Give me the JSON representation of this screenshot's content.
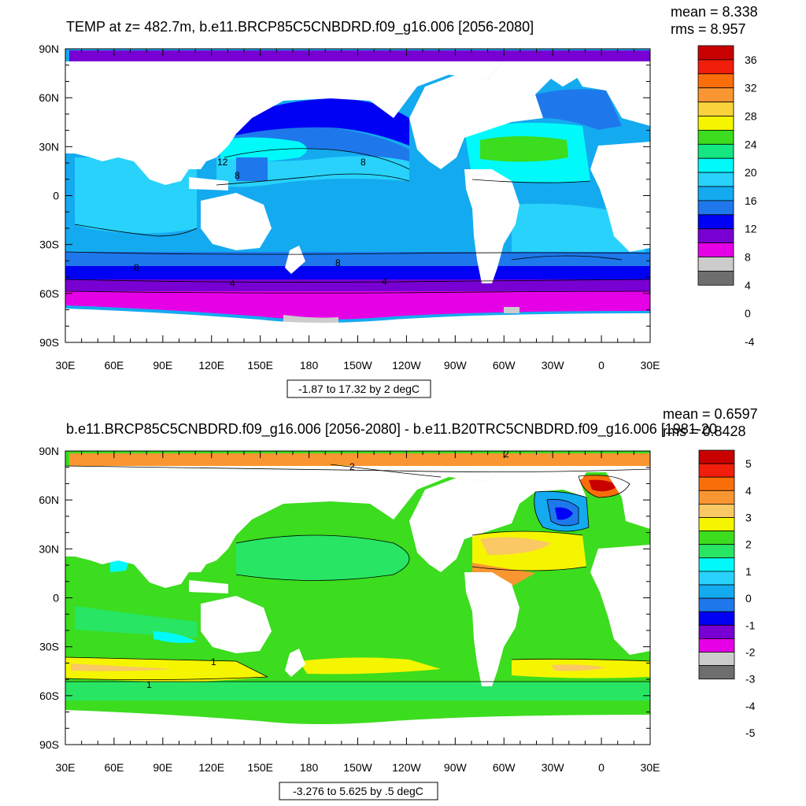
{
  "panels": [
    {
      "id": "top",
      "title": "TEMP at z= 482.7m, b.e11.BRCP85C5CNBDRD.f09_g16.006 [2056-2080]",
      "mean": "mean = 8.338",
      "rms": "rms = 8.957",
      "range_label": "-1.87 to 17.32 by 2 degC",
      "colorbar": {
        "labels": [
          "36",
          "32",
          "28",
          "24",
          "20",
          "16",
          "12",
          "8",
          "4",
          "0",
          "-4"
        ],
        "colors": [
          "#c80000",
          "#f01e0a",
          "#fa6e0a",
          "#fa9632",
          "#fad23c",
          "#f5f500",
          "#3cdc1e",
          "#14e682",
          "#00fafa",
          "#28d2fa",
          "#14aaf0",
          "#1e78eb",
          "#0000f5",
          "#7800d2",
          "#e600e6",
          "#cccccc",
          "#6e6e6e"
        ]
      },
      "contour_labels": [
        "12",
        "8",
        "8",
        "8",
        "8",
        "4",
        "4"
      ]
    },
    {
      "id": "bottom",
      "title": "b.e11.BRCP85C5CNBDRD.f09_g16.006 [2056-2080] - b.e11.B20TRC5CNBDRD.f09_g16.006 [1981-20",
      "mean": "mean = 0.6597",
      "rms": "rms = 0.8428",
      "range_label": "-3.276 to 5.625 by .5 degC",
      "colorbar": {
        "labels": [
          "5",
          "4",
          "3",
          "2",
          "1",
          "0",
          "-1",
          "-2",
          "-3",
          "-4",
          "-5"
        ],
        "colors": [
          "#c80000",
          "#f01e0a",
          "#fa6e0a",
          "#fa9632",
          "#fac864",
          "#f5f500",
          "#3cdc1e",
          "#28e664",
          "#00fafa",
          "#28d2fa",
          "#14aaf0",
          "#1e78eb",
          "#0000f5",
          "#7800d2",
          "#e600e6",
          "#cccccc",
          "#6e6e6e"
        ]
      },
      "contour_labels": [
        "2",
        "2",
        "1",
        "1"
      ]
    }
  ],
  "axes": {
    "lat_labels": [
      "90N",
      "60N",
      "30N",
      "0",
      "30S",
      "60S",
      "90S"
    ],
    "lon_labels": [
      "30E",
      "60E",
      "90E",
      "120E",
      "150E",
      "180",
      "150W",
      "120W",
      "90W",
      "60W",
      "30W",
      "0",
      "30E"
    ]
  },
  "colors": {
    "land": "#ffffff",
    "frame": "#000000",
    "contour": "#000000"
  }
}
